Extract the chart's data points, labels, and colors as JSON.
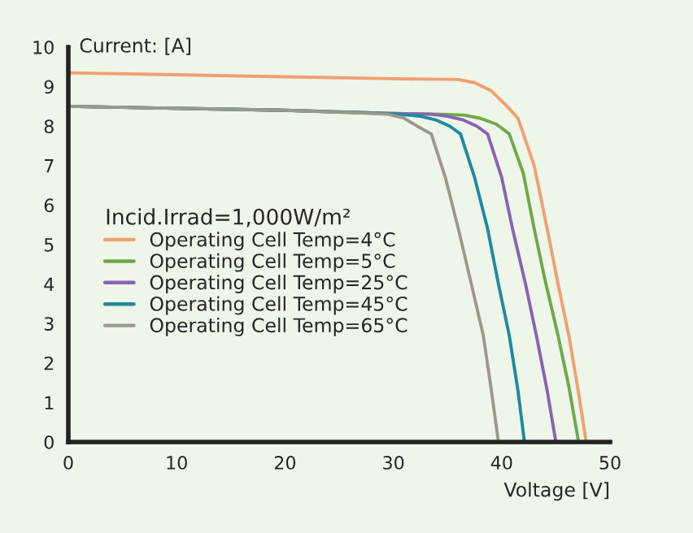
{
  "chart_data": {
    "type": "line",
    "xlabel": "Voltage [V]",
    "ylabel": "Current: [A]",
    "legend_title": "Incid.Irrad=1,000W/m²",
    "legend": "left",
    "grid": false,
    "marker": "none",
    "line_style": "solid",
    "xlim": [
      0,
      50
    ],
    "xticks": [
      0,
      10,
      20,
      30,
      40,
      50
    ],
    "ylim": [
      0,
      10
    ],
    "yticks": [
      0,
      1,
      2,
      3,
      4,
      5,
      6,
      7,
      8,
      9,
      10
    ],
    "series": [
      {
        "name": "Operating Cell Temp=4°C",
        "color": "#f0a070",
        "x": [
          0,
          10,
          20,
          30,
          36,
          37.5,
          39,
          40.5,
          41.5,
          43,
          44.2,
          45.2,
          46.2,
          47,
          47.8
        ],
        "values": [
          9.35,
          9.3,
          9.25,
          9.2,
          9.18,
          9.1,
          8.9,
          8.5,
          8.2,
          7,
          5.4,
          4,
          2.7,
          1.4,
          0
        ]
      },
      {
        "name": "Operating Cell Temp=5°C",
        "color": "#6fa84a",
        "x": [
          0,
          10,
          20,
          30,
          34.5,
          36.5,
          38,
          39.5,
          40.7,
          42,
          43,
          44,
          45.2,
          46.2,
          47.1
        ],
        "values": [
          8.5,
          8.45,
          8.4,
          8.32,
          8.3,
          8.28,
          8.2,
          8.05,
          7.8,
          6.8,
          5.4,
          4.1,
          2.7,
          1.4,
          0
        ]
      },
      {
        "name": "Operating Cell Temp=25°C",
        "color": "#8a63b0",
        "x": [
          0,
          10,
          20,
          30,
          33.5,
          35,
          36.5,
          37.7,
          38.7,
          40,
          41,
          42.2,
          43.2,
          44.2,
          45
        ],
        "values": [
          8.5,
          8.45,
          8.4,
          8.32,
          8.3,
          8.25,
          8.15,
          8,
          7.8,
          6.7,
          5.4,
          4,
          2.7,
          1.3,
          0
        ]
      },
      {
        "name": "Operating Cell Temp=45°C",
        "color": "#1f8a9e",
        "x": [
          0,
          10,
          20,
          29,
          30.5,
          32.5,
          34,
          35.2,
          36.2,
          37.5,
          38.7,
          39.7,
          40.7,
          41.5,
          42.1
        ],
        "values": [
          8.5,
          8.45,
          8.4,
          8.32,
          8.3,
          8.25,
          8.15,
          8,
          7.8,
          6.7,
          5.4,
          4,
          2.7,
          1.3,
          0
        ]
      },
      {
        "name": "Operating Cell Temp=65°C",
        "color": "#9a9a8a",
        "x": [
          0,
          10,
          20,
          28,
          29.5,
          31,
          32.2,
          33.5,
          34.8,
          36,
          37.2,
          38.3,
          39,
          39.7
        ],
        "values": [
          8.5,
          8.45,
          8.4,
          8.32,
          8.3,
          8.2,
          8,
          7.8,
          6.7,
          5.4,
          4,
          2.7,
          1.4,
          0
        ]
      }
    ]
  }
}
